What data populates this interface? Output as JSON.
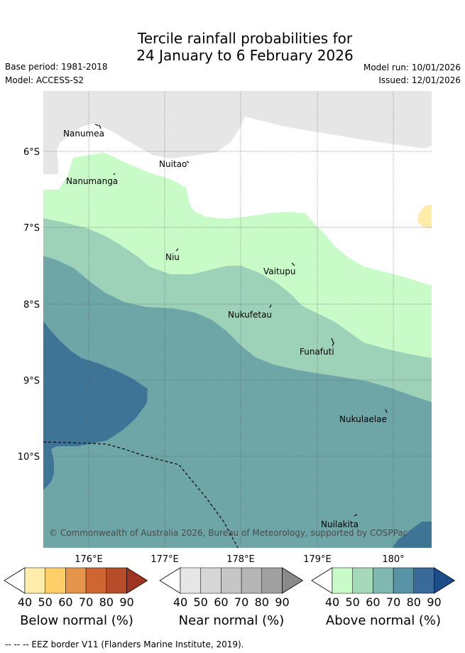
{
  "title": {
    "line1": "Tercile rainfall probabilities for",
    "line2": "24 January to 6 February 2026"
  },
  "meta": {
    "base_period": "Base period: 1981-2018",
    "model": "Model: ACCESS-S2",
    "model_run": "Model run: 10/01/2026",
    "issued": "Issued: 12/01/2026"
  },
  "map": {
    "lat_labels": [
      "6°S",
      "7°S",
      "8°S",
      "9°S",
      "10°S"
    ],
    "lon_labels": [
      "176°E",
      "177°E",
      "178°E",
      "179°E",
      "180°"
    ],
    "places": [
      "Nanumea",
      "Nuitao",
      "Nanumanga",
      "Niu",
      "Vaitupu",
      "Nukufetau",
      "Funafuti",
      "Nukulaelae",
      "Nuilakita"
    ],
    "copyright": "© Commonwealth of Australia 2026, Bureau of Meteorology, supported by COSPPac"
  },
  "legends": [
    {
      "name": "Below normal (%)",
      "ticks": [
        "40",
        "50",
        "60",
        "70",
        "80",
        "90"
      ],
      "colors": [
        "#ffffff",
        "#ffedab",
        "#fecf69",
        "#e5944b",
        "#d06534",
        "#b64c29",
        "#9e3522"
      ]
    },
    {
      "name": "Near normal (%)",
      "ticks": [
        "40",
        "50",
        "60",
        "70",
        "80",
        "90"
      ],
      "colors": [
        "#ffffff",
        "#e6e6e6",
        "#d6d6d6",
        "#c6c6c6",
        "#b5b5b5",
        "#a0a0a0",
        "#8a8a8a"
      ]
    },
    {
      "name": "Above normal (%)",
      "ticks": [
        "40",
        "50",
        "60",
        "70",
        "80",
        "90"
      ],
      "colors": [
        "#ffffff",
        "#c9fbc9",
        "#a5d9b9",
        "#80b7b0",
        "#5893a6",
        "#3a6a9a",
        "#1c4d88"
      ]
    }
  ],
  "footer": "--  --  -- EEZ border V11 (Flanders Marine Institute, 2019).",
  "colors": {
    "land": "#e6e6e6",
    "above_40": "#c8fbc8",
    "above_50": "#9dd1b8",
    "above_60": "#6ea5a7",
    "above_70": "#3e7596",
    "below_40": "#ffeca8"
  }
}
